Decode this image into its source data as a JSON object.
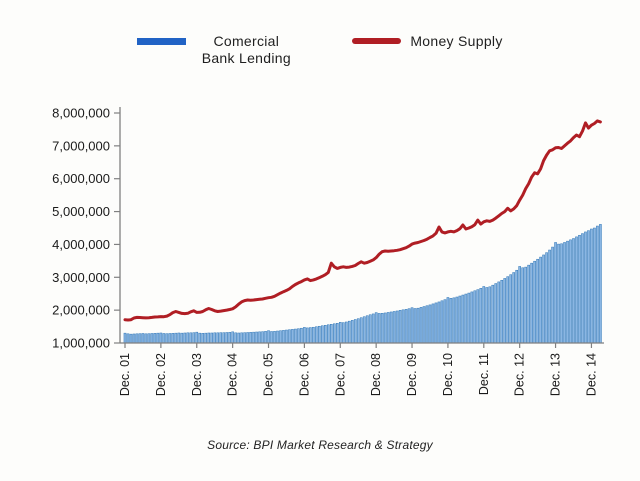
{
  "legend": {
    "items": [
      {
        "label": "Comercial Bank Lending",
        "swatch": "bar"
      },
      {
        "label": "Money Supply",
        "swatch": "line"
      }
    ]
  },
  "source": "Source: BPI Market Research & Strategy",
  "colors": {
    "legend_bar_swatch": "#2163c5",
    "bar_fill": "#8ab6e3",
    "bar_stroke": "#2e75b6",
    "line": "#b01e24",
    "axis": "#808080",
    "tick_text": "#1a1a1a"
  },
  "chart_data": {
    "type": "combo",
    "x_unit": "month",
    "n_points": 160,
    "x_start": "Dec 2001",
    "x_end": "Mar 2015",
    "x_tick_every": 12,
    "x_tick_labels": [
      "Dec. 01",
      "Dec. 02",
      "Dec. 03",
      "Dec. 04",
      "Dec. 05",
      "Dec. 06",
      "Dec. 07",
      "Dec. 08",
      "Dec. 09",
      "Dec. 10",
      "Dec. 11",
      "Dec. 12",
      "Dec. 13",
      "Dec. 14"
    ],
    "ylim": [
      1000000,
      8000000
    ],
    "y_tick_step": 1000000,
    "y_tick_labels": [
      "1,000,000",
      "2,000,000",
      "3,000,000",
      "4,000,000",
      "5,000,000",
      "6,000,000",
      "7,000,000",
      "8,000,000"
    ],
    "grid": false,
    "legend_position": "top",
    "series": [
      {
        "name": "Comercial Bank Lending",
        "type": "bar",
        "values": [
          1300000,
          1280000,
          1270000,
          1275000,
          1280000,
          1285000,
          1290000,
          1280000,
          1285000,
          1290000,
          1295000,
          1300000,
          1305000,
          1290000,
          1285000,
          1290000,
          1295000,
          1300000,
          1305000,
          1300000,
          1305000,
          1310000,
          1310000,
          1315000,
          1330000,
          1300000,
          1295000,
          1300000,
          1305000,
          1305000,
          1310000,
          1310000,
          1315000,
          1315000,
          1320000,
          1325000,
          1340000,
          1310000,
          1305000,
          1310000,
          1315000,
          1320000,
          1325000,
          1330000,
          1335000,
          1340000,
          1345000,
          1355000,
          1375000,
          1350000,
          1355000,
          1365000,
          1375000,
          1385000,
          1395000,
          1405000,
          1415000,
          1425000,
          1435000,
          1450000,
          1475000,
          1460000,
          1470000,
          1480000,
          1495000,
          1510000,
          1525000,
          1540000,
          1555000,
          1570000,
          1585000,
          1600000,
          1630000,
          1620000,
          1640000,
          1665000,
          1690000,
          1715000,
          1740000,
          1770000,
          1800000,
          1830000,
          1860000,
          1885000,
          1925000,
          1900000,
          1905000,
          1915000,
          1930000,
          1945000,
          1960000,
          1975000,
          1995000,
          2010000,
          2025000,
          2045000,
          2075000,
          2050000,
          2060000,
          2085000,
          2110000,
          2135000,
          2160000,
          2190000,
          2220000,
          2250000,
          2285000,
          2320000,
          2385000,
          2360000,
          2375000,
          2400000,
          2430000,
          2460000,
          2490000,
          2520000,
          2555000,
          2590000,
          2625000,
          2665000,
          2720000,
          2690000,
          2710000,
          2760000,
          2810000,
          2860000,
          2910000,
          2965000,
          3020000,
          3080000,
          3145000,
          3215000,
          3330000,
          3290000,
          3310000,
          3370000,
          3430000,
          3490000,
          3550000,
          3615000,
          3680000,
          3750000,
          3830000,
          3920000,
          4060000,
          4010000,
          4020000,
          4060000,
          4100000,
          4140000,
          4180000,
          4230000,
          4280000,
          4330000,
          4380000,
          4420000,
          4470000,
          4500000,
          4560000,
          4610000
        ]
      },
      {
        "name": "Money Supply",
        "type": "line",
        "values": [
          1710000,
          1700000,
          1710000,
          1760000,
          1780000,
          1775000,
          1770000,
          1765000,
          1770000,
          1780000,
          1790000,
          1795000,
          1805000,
          1800000,
          1820000,
          1860000,
          1925000,
          1960000,
          1930000,
          1900000,
          1895000,
          1905000,
          1950000,
          1980000,
          1930000,
          1935000,
          1960000,
          2010000,
          2050000,
          2020000,
          1980000,
          1960000,
          1970000,
          1985000,
          2000000,
          2020000,
          2040000,
          2100000,
          2180000,
          2250000,
          2290000,
          2310000,
          2300000,
          2310000,
          2320000,
          2330000,
          2340000,
          2360000,
          2380000,
          2390000,
          2420000,
          2470000,
          2520000,
          2560000,
          2600000,
          2650000,
          2720000,
          2780000,
          2830000,
          2870000,
          2920000,
          2950000,
          2900000,
          2920000,
          2950000,
          2990000,
          3030000,
          3080000,
          3150000,
          3430000,
          3320000,
          3270000,
          3300000,
          3320000,
          3300000,
          3310000,
          3330000,
          3360000,
          3420000,
          3470000,
          3430000,
          3450000,
          3490000,
          3530000,
          3600000,
          3700000,
          3780000,
          3800000,
          3790000,
          3800000,
          3810000,
          3820000,
          3840000,
          3870000,
          3900000,
          3950000,
          4010000,
          4040000,
          4060000,
          4090000,
          4120000,
          4160000,
          4210000,
          4260000,
          4340000,
          4530000,
          4380000,
          4350000,
          4380000,
          4400000,
          4380000,
          4420000,
          4480000,
          4590000,
          4470000,
          4500000,
          4540000,
          4600000,
          4740000,
          4620000,
          4690000,
          4720000,
          4700000,
          4740000,
          4800000,
          4870000,
          4940000,
          5000000,
          5100000,
          5020000,
          5080000,
          5180000,
          5350000,
          5500000,
          5700000,
          5850000,
          6050000,
          6180000,
          6150000,
          6300000,
          6550000,
          6720000,
          6850000,
          6880000,
          6940000,
          6950000,
          6920000,
          7000000,
          7080000,
          7150000,
          7250000,
          7330000,
          7280000,
          7450000,
          7700000,
          7540000,
          7630000,
          7680000,
          7760000,
          7730000
        ]
      }
    ]
  }
}
